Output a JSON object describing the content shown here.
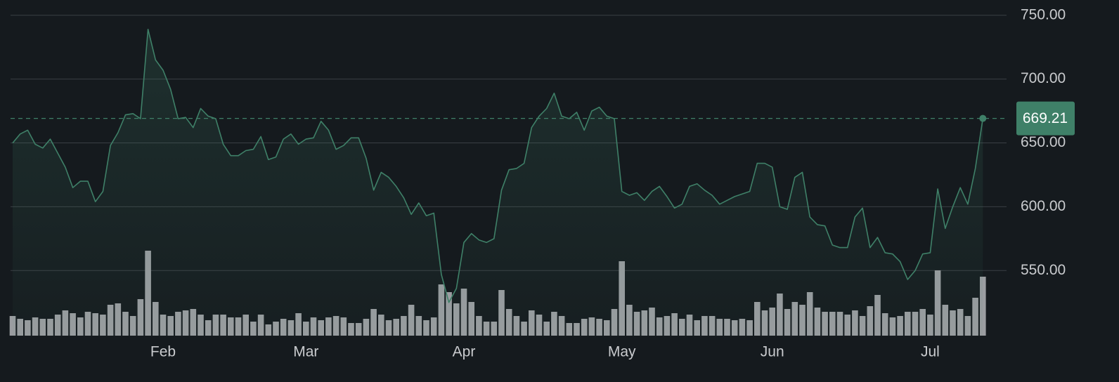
{
  "chart_data": {
    "type": "line",
    "categories": [
      null,
      null,
      null,
      null,
      null,
      null,
      null,
      null,
      null,
      null,
      null,
      null,
      null,
      null,
      null,
      null,
      null,
      null,
      null,
      null,
      "Feb",
      null,
      null,
      null,
      null,
      null,
      null,
      null,
      null,
      null,
      null,
      null,
      null,
      null,
      null,
      null,
      null,
      null,
      null,
      "Mar",
      null,
      null,
      null,
      null,
      null,
      null,
      null,
      null,
      null,
      null,
      null,
      null,
      null,
      null,
      null,
      null,
      null,
      null,
      null,
      null,
      "Apr",
      null,
      null,
      null,
      null,
      null,
      null,
      null,
      null,
      null,
      null,
      null,
      null,
      null,
      null,
      null,
      null,
      null,
      null,
      null,
      null,
      "May",
      null,
      null,
      null,
      null,
      null,
      null,
      null,
      null,
      null,
      null,
      null,
      null,
      null,
      null,
      null,
      null,
      null,
      null,
      null,
      "Jun",
      null,
      null,
      null,
      null,
      null,
      null,
      null,
      null,
      null,
      null,
      null,
      null,
      null,
      null,
      null,
      null,
      null,
      null,
      null,
      null,
      "Jul",
      null,
      null,
      null,
      null,
      null,
      null,
      null
    ],
    "series": [
      {
        "type": "line",
        "color": "#3f8068",
        "values": [
          650,
          657,
          660,
          649,
          646,
          653,
          642,
          631,
          615,
          620,
          620,
          604,
          612,
          648,
          658,
          672,
          673,
          669,
          739,
          715,
          707,
          692,
          669,
          670,
          662,
          677,
          671,
          669,
          649,
          640,
          640,
          644,
          645,
          655,
          637,
          639,
          653,
          657,
          649,
          653,
          654,
          667,
          660,
          645,
          648,
          654,
          654,
          638,
          613,
          627,
          623,
          616,
          607,
          594,
          603,
          593,
          595,
          547,
          525,
          536,
          572,
          579,
          574,
          572,
          575,
          613,
          629,
          630,
          634,
          662,
          671,
          677,
          689,
          671,
          669,
          674,
          660,
          675,
          678,
          671,
          669,
          612,
          609,
          611,
          605,
          612,
          616,
          608,
          599,
          602,
          616,
          618,
          613,
          609,
          602,
          605,
          608,
          610,
          612,
          634,
          634,
          631,
          600,
          598,
          623,
          627,
          592,
          586,
          585,
          570,
          568,
          568,
          592,
          599,
          568,
          576,
          564,
          563,
          557,
          543,
          550,
          563,
          564,
          614,
          583,
          600,
          615,
          602,
          630,
          669.21
        ]
      },
      {
        "type": "bar",
        "color": "#9b9da1",
        "values": [
          28,
          24,
          22,
          26,
          24,
          24,
          30,
          36,
          32,
          26,
          34,
          32,
          30,
          44,
          46,
          34,
          28,
          52,
          121,
          48,
          30,
          28,
          34,
          36,
          38,
          30,
          22,
          30,
          30,
          26,
          26,
          30,
          20,
          30,
          16,
          20,
          24,
          22,
          32,
          20,
          26,
          22,
          26,
          28,
          26,
          18,
          18,
          24,
          38,
          30,
          22,
          24,
          28,
          44,
          28,
          22,
          26,
          73,
          62,
          46,
          67,
          48,
          28,
          20,
          20,
          65,
          38,
          28,
          20,
          36,
          30,
          20,
          34,
          28,
          18,
          18,
          24,
          26,
          24,
          22,
          38,
          106,
          44,
          34,
          36,
          40,
          26,
          28,
          32,
          24,
          30,
          22,
          28,
          28,
          24,
          24,
          22,
          24,
          22,
          48,
          36,
          40,
          60,
          38,
          48,
          44,
          62,
          40,
          34,
          34,
          34,
          30,
          36,
          28,
          42,
          58,
          32,
          26,
          28,
          34,
          34,
          38,
          30,
          93,
          44,
          36,
          38,
          28,
          54,
          84
        ]
      }
    ],
    "ylim": [
      499,
      762
    ],
    "yticks": [
      {
        "value": 550,
        "label": "550.00"
      },
      {
        "value": 600,
        "label": "600.00"
      },
      {
        "value": 650,
        "label": "650.00"
      },
      {
        "value": 700,
        "label": "700.00"
      },
      {
        "value": 750,
        "label": "750.00"
      }
    ],
    "grid": true,
    "last_value_marker": true
  }
}
